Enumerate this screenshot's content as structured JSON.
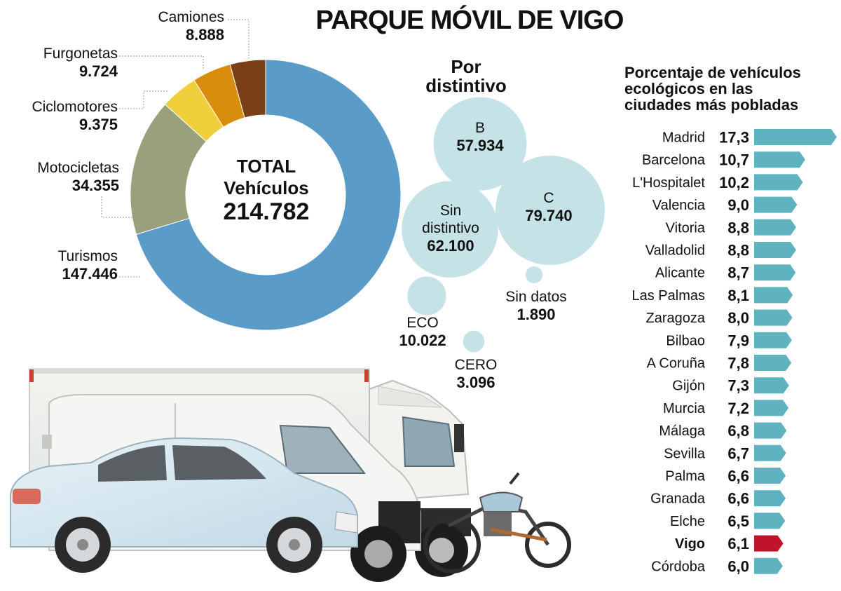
{
  "title": "PARQUE MÓVIL DE VIGO",
  "donut": {
    "center_line1": "TOTAL",
    "center_line2": "Vehículos",
    "center_total": "214.782",
    "segments": [
      {
        "name": "Turismos",
        "label": "147.446",
        "value": 147446,
        "color": "#5b9bc8"
      },
      {
        "name": "Motocicletas",
        "label": "34.355",
        "value": 34355,
        "color": "#9aa07c"
      },
      {
        "name": "Ciclomotores",
        "label": "9.375",
        "value": 9375,
        "color": "#f0cf3c"
      },
      {
        "name": "Furgonetas",
        "label": "9.724",
        "value": 9724,
        "color": "#d98d0c"
      },
      {
        "name": "Camiones",
        "label": "8.888",
        "value": 8888,
        "color": "#7a3f17"
      }
    ]
  },
  "bubbles": {
    "title_line1": "Por",
    "title_line2": "distintivo",
    "color": "#c5e3e6",
    "items": [
      {
        "name": "B",
        "label": "57.934",
        "value": 57934
      },
      {
        "name": "C",
        "label": "79.740",
        "value": 79740
      },
      {
        "name": "Sin distintivo",
        "name_line1": "Sin",
        "name_line2": "distintivo",
        "label": "62.100",
        "value": 62100
      },
      {
        "name": "ECO",
        "label": "10.022",
        "value": 10022
      },
      {
        "name": "CERO",
        "label": "3.096",
        "value": 3096
      },
      {
        "name": "Sin datos",
        "label": "1.890",
        "value": 1890
      }
    ]
  },
  "chart_data": {
    "type": "bar",
    "title": "Porcentaje de vehículos ecológicos en las ciudades más pobladas",
    "title_lines": [
      "Porcentaje de vehículos",
      "ecológicos en las",
      "ciudades más pobladas"
    ],
    "categories": [
      "Madrid",
      "Barcelona",
      "L'Hospitalet",
      "Valencia",
      "Vitoria",
      "Valladolid",
      "Alicante",
      "Las Palmas",
      "Zaragoza",
      "Bilbao",
      "A Coruña",
      "Gijón",
      "Murcia",
      "Málaga",
      "Sevilla",
      "Palma",
      "Granada",
      "Elche",
      "Vigo",
      "Córdoba"
    ],
    "values": [
      17.3,
      10.7,
      10.2,
      9.0,
      8.8,
      8.8,
      8.7,
      8.1,
      8.0,
      7.9,
      7.8,
      7.3,
      7.2,
      6.8,
      6.7,
      6.6,
      6.6,
      6.5,
      6.1,
      6.0
    ],
    "value_labels": [
      "17,3",
      "10,7",
      "10,2",
      "9,0",
      "8,8",
      "8,8",
      "8,7",
      "8,1",
      "8,0",
      "7,9",
      "7,8",
      "7,3",
      "7,2",
      "6,8",
      "6,7",
      "6,6",
      "6,6",
      "6,5",
      "6,1",
      "6,0"
    ],
    "highlight": "Vigo",
    "bar_color": "#5fb3c0",
    "highlight_color": "#c0142b",
    "xlabel": "",
    "ylabel": ""
  }
}
